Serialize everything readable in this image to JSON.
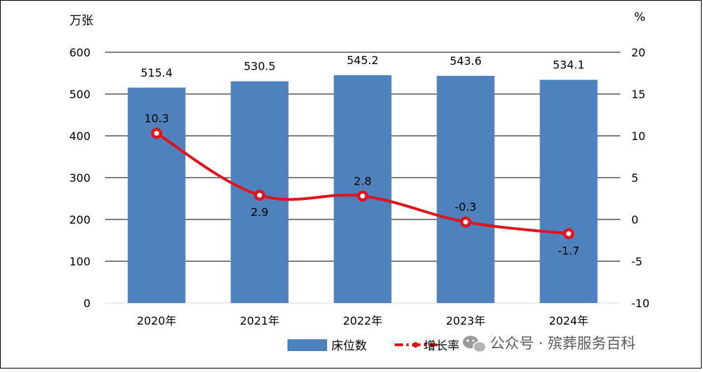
{
  "chart_data": {
    "type": "bar",
    "title": "",
    "categories": [
      "2020年",
      "2021年",
      "2022年",
      "2023年",
      "2024年"
    ],
    "series": [
      {
        "name": "床位数",
        "type": "bar",
        "axis": "left",
        "values": [
          515.4,
          530.5,
          545.2,
          543.6,
          534.1
        ],
        "color": "#4f81bd"
      },
      {
        "name": "增长率",
        "type": "line",
        "axis": "right",
        "values": [
          10.3,
          2.9,
          2.8,
          -0.3,
          -1.7
        ],
        "color": "#e0141c"
      }
    ],
    "bar_labels": [
      "515.4",
      "530.5",
      "545.2",
      "543.6",
      "534.1"
    ],
    "rate_labels": [
      "10.3",
      "2.9",
      "2.8",
      "-0.3",
      "-1.7"
    ],
    "y_left": {
      "unit": "万张",
      "min": 0,
      "max": 600,
      "ticks": [
        "0",
        "100",
        "200",
        "300",
        "400",
        "500",
        "600"
      ]
    },
    "y_right": {
      "unit": "%",
      "min": -10,
      "max": 20,
      "ticks": [
        "-10",
        "-5",
        "0",
        "5",
        "10",
        "15",
        "20"
      ]
    },
    "grid": true,
    "legend_position": "bottom",
    "legend": [
      "床位数",
      "增长率"
    ]
  },
  "watermark": {
    "text": "公众号 · 殡葬服务百科",
    "icon": "wechat-icon"
  }
}
